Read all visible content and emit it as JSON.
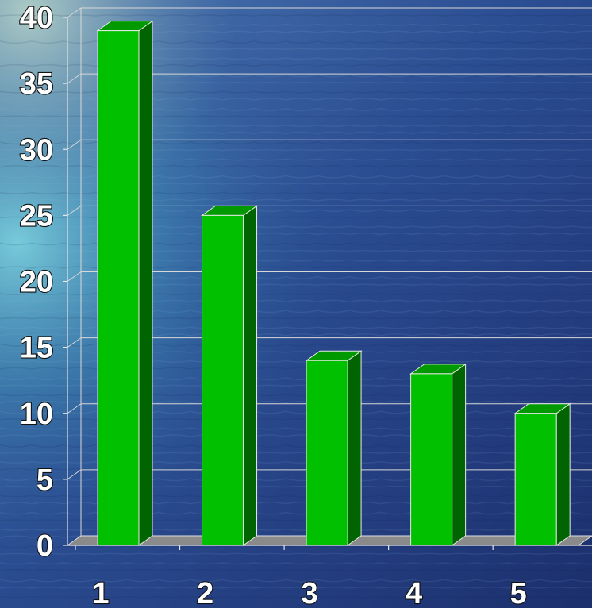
{
  "chart_data": {
    "type": "bar",
    "categories": [
      "1",
      "2",
      "3",
      "4",
      "5"
    ],
    "values": [
      39,
      25,
      14,
      13,
      10
    ],
    "ylim": [
      0,
      40
    ],
    "yticks": [
      0,
      5,
      10,
      15,
      20,
      25,
      30,
      35,
      40
    ],
    "grid": true,
    "legend": "none",
    "bar_color": "#00c000",
    "bar_top_color": "#009a00",
    "bar_side_color": "#006400",
    "floor_color": "#8a8a8a",
    "background": "ocean water photo, blue"
  }
}
